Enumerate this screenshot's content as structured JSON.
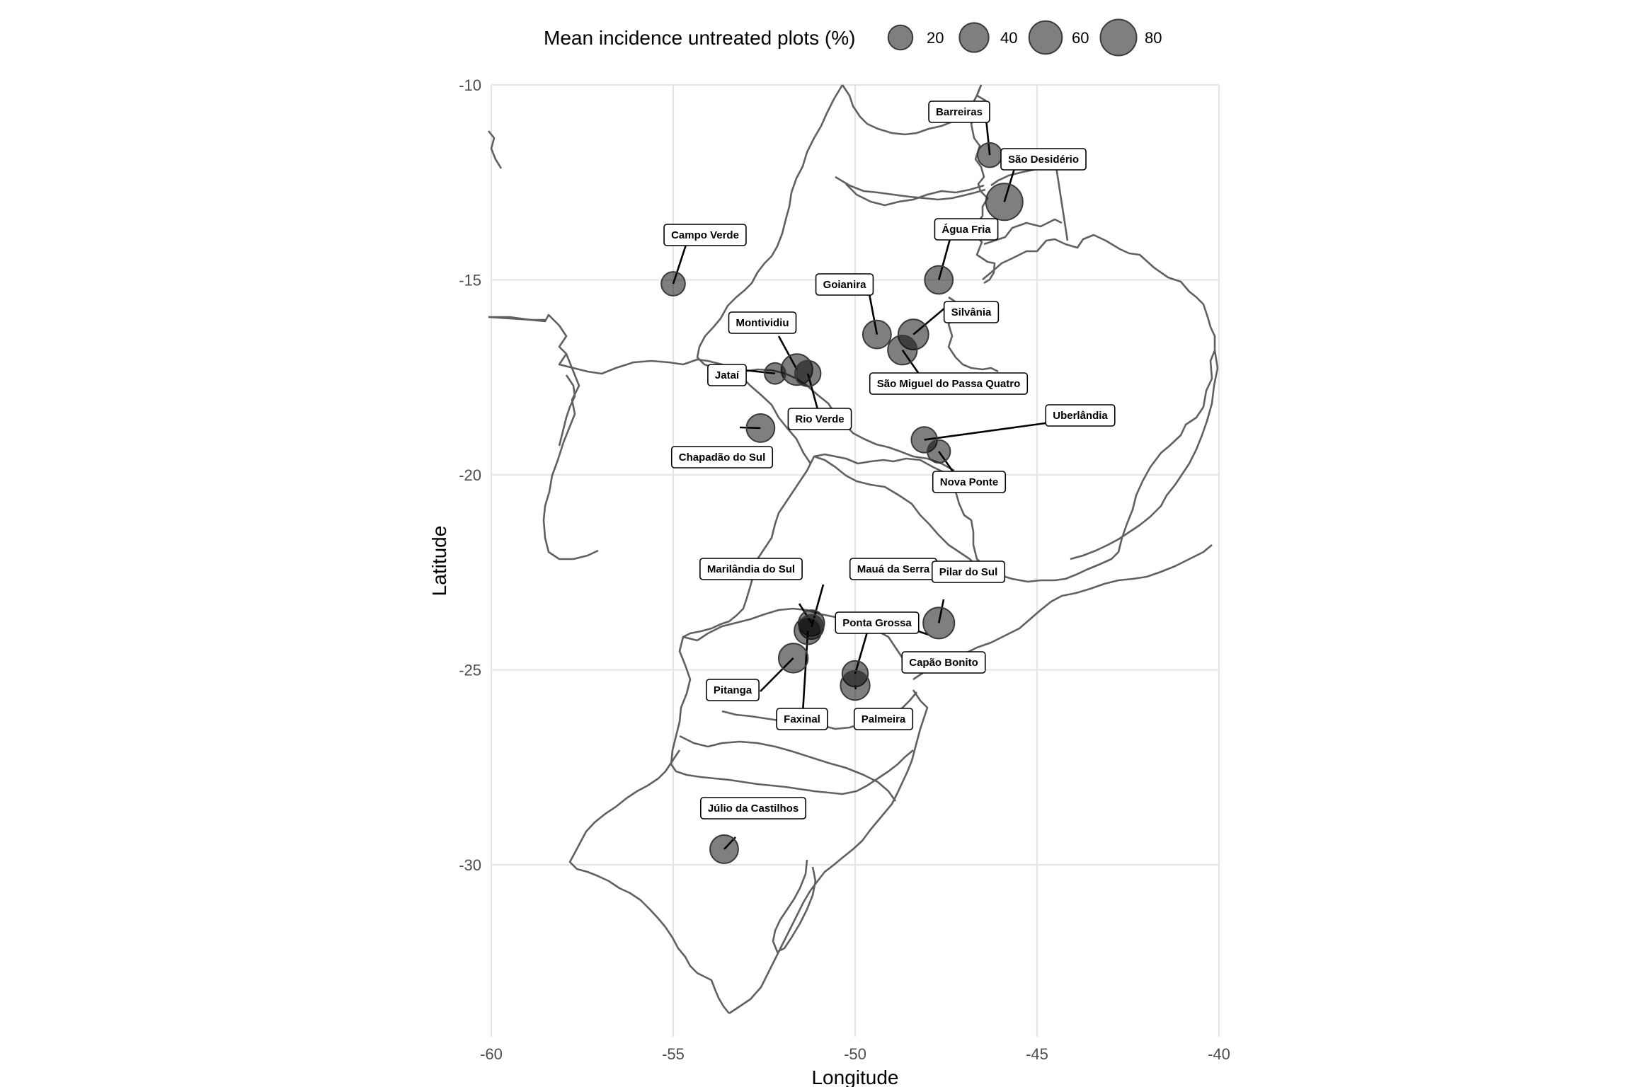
{
  "chart_data": {
    "type": "scatter",
    "xlabel": "Longitude",
    "ylabel": "Latitude",
    "xlim": [
      -60,
      -40
    ],
    "ylim": [
      -35,
      -10
    ],
    "x_ticks": [
      -60,
      -55,
      -50,
      -45,
      -40
    ],
    "y_ticks": [
      -10,
      -15,
      -20,
      -25,
      -30
    ],
    "grid": true,
    "legend": {
      "title": "Mean incidence untreated plots (%)",
      "position": "top",
      "sizes": [
        20,
        40,
        60,
        80
      ]
    },
    "point_color": "#000000",
    "point_opacity": 0.5,
    "border_color": "#606060",
    "points": [
      {
        "name": "Barreiras",
        "lon": -46.3,
        "lat": -11.8,
        "incidence": 20
      },
      {
        "name": "São Desidério",
        "lon": -45.9,
        "lat": -13.0,
        "incidence": 85
      },
      {
        "name": "Água Fria",
        "lon": -47.7,
        "lat": -15.0,
        "incidence": 35
      },
      {
        "name": "Campo Verde",
        "lon": -55.0,
        "lat": -15.1,
        "incidence": 18
      },
      {
        "name": "Goianira",
        "lon": -49.4,
        "lat": -16.4,
        "incidence": 35
      },
      {
        "name": "Silvânia",
        "lon": -48.4,
        "lat": -16.4,
        "incidence": 45
      },
      {
        "name": "São Miguel do Passa Quatro",
        "lon": -48.7,
        "lat": -16.8,
        "incidence": 40
      },
      {
        "name": "Montividiu",
        "lon": -51.6,
        "lat": -17.3,
        "incidence": 50
      },
      {
        "name": "Jataí",
        "lon": -52.2,
        "lat": -17.4,
        "incidence": 10
      },
      {
        "name": "Rio Verde",
        "lon": -51.3,
        "lat": -17.4,
        "incidence": 25
      },
      {
        "name": "Chapadão do Sul",
        "lon": -52.6,
        "lat": -18.8,
        "incidence": 35
      },
      {
        "name": "Uberlândia",
        "lon": -48.1,
        "lat": -19.1,
        "incidence": 25
      },
      {
        "name": "Nova Ponte",
        "lon": -47.7,
        "lat": -19.4,
        "incidence": 15
      },
      {
        "name": "Marilândia do Sul",
        "lon": -51.2,
        "lat": -23.8,
        "incidence": 25
      },
      {
        "name": "Mauá da Serra",
        "lon": -51.2,
        "lat": -23.9,
        "incidence": 20
      },
      {
        "name": "Faxinal",
        "lon": -51.3,
        "lat": -24.0,
        "incidence": 30
      },
      {
        "name": "Pilar do Sul",
        "lon": -47.7,
        "lat": -23.8,
        "incidence": 50
      },
      {
        "name": "Pitanga",
        "lon": -51.7,
        "lat": -24.7,
        "incidence": 40
      },
      {
        "name": "Ponta Grossa",
        "lon": -50.0,
        "lat": -25.1,
        "incidence": 25
      },
      {
        "name": "Capão Bonito",
        "lon": -48.3,
        "lat": -24.0,
        "incidence": 0
      },
      {
        "name": "Palmeira",
        "lon": -50.0,
        "lat": -25.4,
        "incidence": 40
      },
      {
        "name": "Júlio da Castilhos",
        "lon": -53.6,
        "lat": -29.6,
        "incidence": 35
      }
    ]
  }
}
